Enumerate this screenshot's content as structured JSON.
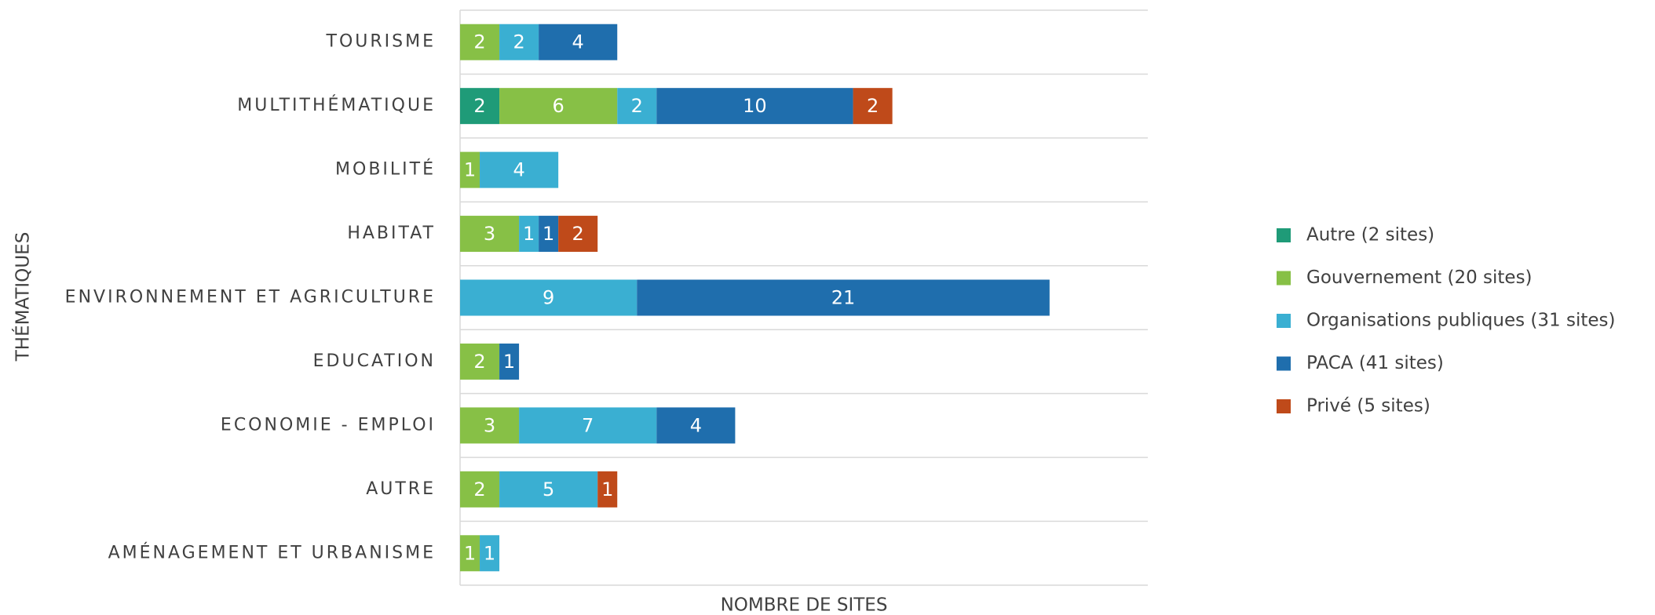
{
  "chart_data": {
    "type": "stacked-barh",
    "xlabel": "NOMBRE DE SITES",
    "ylabel": "THÉMATIQUES",
    "categories": [
      "TOURISME",
      "MULTITHÉMATIQUE",
      "MOBILITÉ",
      "HABITAT",
      "ENVIRONNEMENT ET AGRICULTURE",
      "EDUCATION",
      "ECONOMIE - EMPLOI",
      "AUTRE",
      "AMÉNAGEMENT ET URBANISME"
    ],
    "series": [
      {
        "name": "Autre (2 sites)",
        "color": "#1f9b78",
        "values": [
          null,
          2,
          null,
          null,
          null,
          null,
          null,
          null,
          null
        ]
      },
      {
        "name": "Gouvernement (20 sites)",
        "color": "#87c046",
        "values": [
          2,
          6,
          1,
          3,
          null,
          2,
          3,
          2,
          1
        ]
      },
      {
        "name": "Organisations publiques (31 sites)",
        "color": "#3aafd2",
        "values": [
          2,
          2,
          4,
          1,
          9,
          null,
          7,
          5,
          1
        ]
      },
      {
        "name": "PACA (41 sites)",
        "color": "#1f6ead",
        "values": [
          4,
          10,
          null,
          1,
          21,
          1,
          4,
          null,
          null
        ]
      },
      {
        "name": "Privé (5 sites)",
        "color": "#bf4a1a",
        "values": [
          null,
          2,
          null,
          2,
          null,
          null,
          null,
          1,
          null
        ]
      }
    ],
    "xlim": [
      0,
      35
    ],
    "legend": "right"
  }
}
